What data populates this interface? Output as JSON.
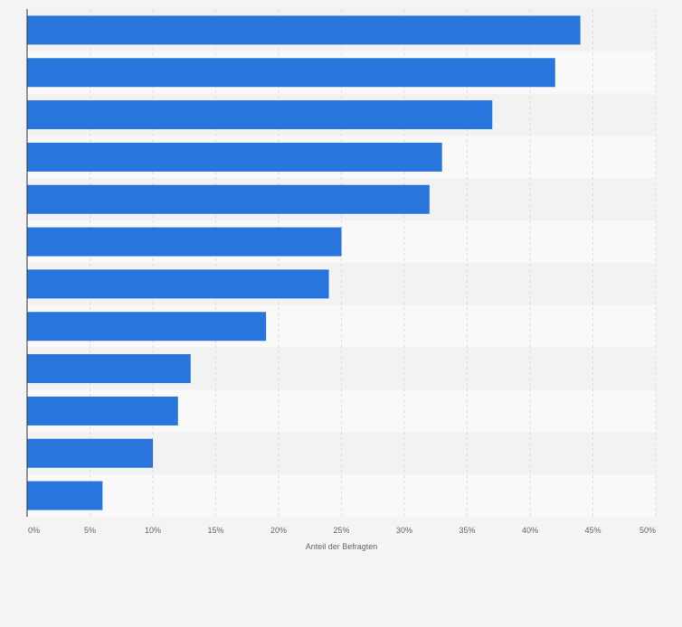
{
  "chart_data": {
    "type": "bar",
    "orientation": "horizontal",
    "categories": [
      "",
      "",
      "",
      "",
      "",
      "",
      "",
      "",
      "",
      "",
      "",
      ""
    ],
    "values": [
      44,
      42,
      37,
      33,
      32,
      25,
      24,
      19,
      13,
      12,
      10,
      6
    ],
    "title": "",
    "xlabel": "Anteil der Befragten",
    "ylabel": "",
    "xlim": [
      0,
      50
    ],
    "x_ticks": [
      0,
      5,
      10,
      15,
      20,
      25,
      30,
      35,
      40,
      45,
      50
    ],
    "x_tick_labels": [
      "0%",
      "5%",
      "10%",
      "15%",
      "20%",
      "25%",
      "30%",
      "35%",
      "40%",
      "45%",
      "50%"
    ],
    "grid": true,
    "legend": "none",
    "colors": {
      "bar": "#2876dd",
      "band_light": "#f9f9f9",
      "band_dark": "#f2f2f2",
      "grid": "#dcdcdc",
      "axis": "#333333",
      "tick_text": "#666666"
    }
  }
}
